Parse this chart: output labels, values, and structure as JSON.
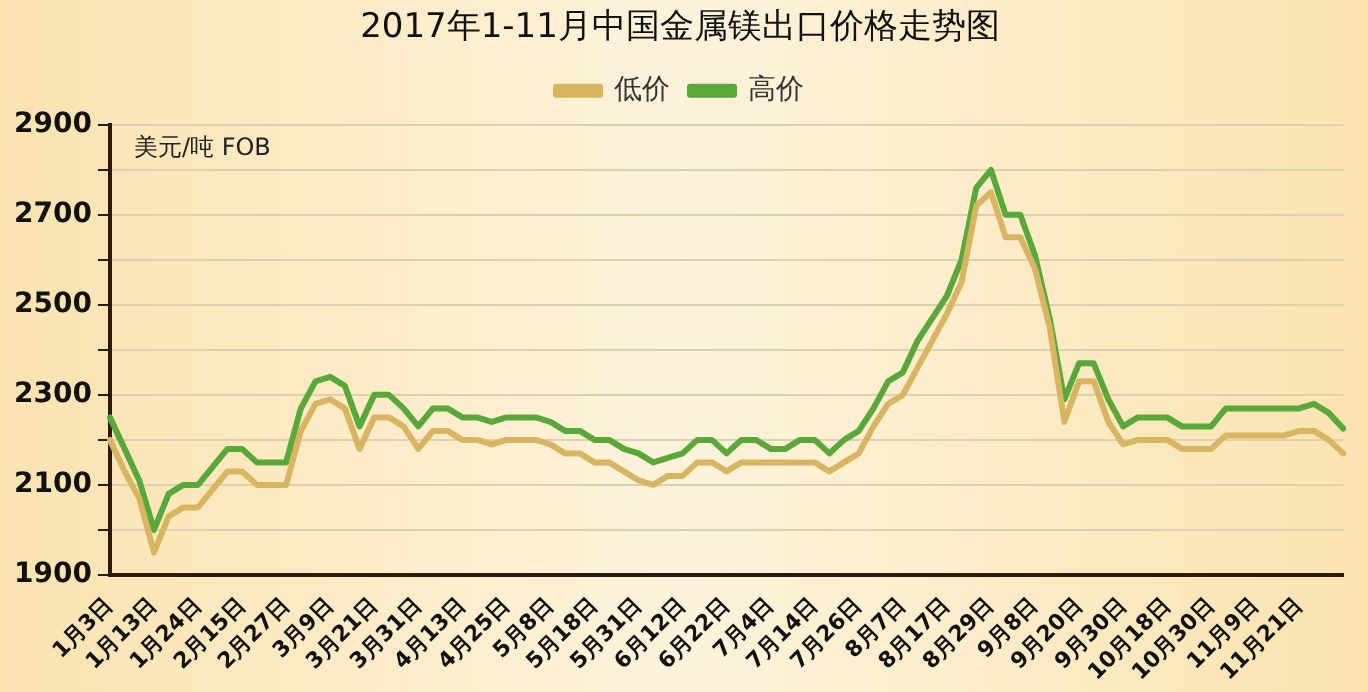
{
  "chart_data": {
    "type": "line",
    "title": "2017年1-11月中国金属镁出口价格走势图",
    "annotations": [
      "美元/吨 FOB"
    ],
    "categories": [
      "1月3日",
      null,
      null,
      "1月13日",
      null,
      null,
      "1月24日",
      null,
      null,
      "2月15日",
      null,
      null,
      "2月27日",
      null,
      null,
      "3月9日",
      null,
      null,
      "3月21日",
      null,
      null,
      "3月31日",
      null,
      null,
      "4月13日",
      null,
      null,
      "4月25日",
      null,
      null,
      "5月8日",
      null,
      null,
      "5月18日",
      null,
      null,
      "5月31日",
      null,
      null,
      "6月12日",
      null,
      null,
      "6月22日",
      null,
      null,
      "7月4日",
      null,
      null,
      "7月14日",
      null,
      null,
      "7月26日",
      null,
      null,
      "8月7日",
      null,
      null,
      "8月17日",
      null,
      null,
      "8月29日",
      null,
      null,
      "9月8日",
      null,
      null,
      "9月20日",
      null,
      null,
      "9月30日",
      null,
      null,
      "10月18日",
      null,
      null,
      "10月30日",
      null,
      null,
      "11月9日",
      null,
      null,
      "11月21日",
      null,
      null,
      null
    ],
    "series": [
      {
        "name": "低价",
        "color": "#d8b560",
        "values": [
          2200,
          2130,
          2070,
          1950,
          2030,
          2050,
          2050,
          2090,
          2130,
          2130,
          2100,
          2100,
          2100,
          2220,
          2280,
          2290,
          2270,
          2180,
          2250,
          2250,
          2230,
          2180,
          2220,
          2220,
          2200,
          2200,
          2190,
          2200,
          2200,
          2200,
          2190,
          2170,
          2170,
          2150,
          2150,
          2130,
          2110,
          2100,
          2120,
          2120,
          2150,
          2150,
          2130,
          2150,
          2150,
          2150,
          2150,
          2150,
          2150,
          2130,
          2150,
          2170,
          2230,
          2280,
          2300,
          2360,
          2420,
          2480,
          2550,
          2720,
          2750,
          2650,
          2650,
          2580,
          2450,
          2240,
          2330,
          2330,
          2240,
          2190,
          2200,
          2200,
          2200,
          2180,
          2180,
          2180,
          2210,
          2210,
          2210,
          2210,
          2210,
          2220,
          2220,
          2200,
          2170
        ]
      },
      {
        "name": "高价",
        "color": "#5aa83a",
        "values": [
          2250,
          2180,
          2110,
          2000,
          2080,
          2100,
          2100,
          2140,
          2180,
          2180,
          2150,
          2150,
          2150,
          2270,
          2330,
          2340,
          2320,
          2230,
          2300,
          2300,
          2270,
          2230,
          2270,
          2270,
          2250,
          2250,
          2240,
          2250,
          2250,
          2250,
          2240,
          2220,
          2220,
          2200,
          2200,
          2180,
          2170,
          2150,
          2160,
          2170,
          2200,
          2200,
          2170,
          2200,
          2200,
          2180,
          2180,
          2200,
          2200,
          2170,
          2200,
          2220,
          2270,
          2330,
          2350,
          2420,
          2470,
          2520,
          2600,
          2760,
          2800,
          2700,
          2700,
          2610,
          2470,
          2290,
          2370,
          2370,
          2290,
          2230,
          2250,
          2250,
          2250,
          2230,
          2230,
          2230,
          2270,
          2270,
          2270,
          2270,
          2270,
          2270,
          2280,
          2260,
          2225
        ]
      }
    ],
    "ylim": [
      1900,
      2900
    ],
    "yticks": [
      1900,
      {
        "value": 2000,
        "label": null
      },
      2100,
      {
        "value": 2200,
        "label": null
      },
      2300,
      {
        "value": 2400,
        "label": null
      },
      2500,
      {
        "value": 2600,
        "label": null
      },
      2700,
      {
        "value": 2800,
        "label": null
      },
      2900
    ],
    "grid": "y",
    "legend": "top",
    "marker": "none",
    "line_style": "solid"
  }
}
